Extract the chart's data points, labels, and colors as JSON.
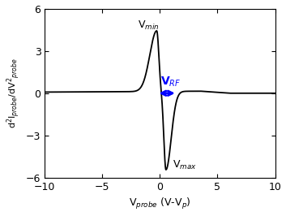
{
  "xlim": [
    -10,
    10
  ],
  "ylim": [
    -6,
    6
  ],
  "xlabel": "V$_{probe}$ (V-V$_p$)",
  "ylabel": "d$^2$I$_{probe}$/dV$^2$$_{probe}$",
  "xticks": [
    -10,
    -5,
    0,
    5,
    10
  ],
  "yticks": [
    -6,
    -3,
    0,
    3,
    6
  ],
  "vmin_label": "V$_{min}$",
  "vmax_label": "V$_{max}$",
  "vrf_label": "V$_{RF}$",
  "line_color": "#000000",
  "arrow_color": "#0000ff",
  "label_color_vrf": "#0000ff",
  "background_color": "#ffffff",
  "figsize": [
    3.53,
    2.66
  ],
  "dpi": 100
}
